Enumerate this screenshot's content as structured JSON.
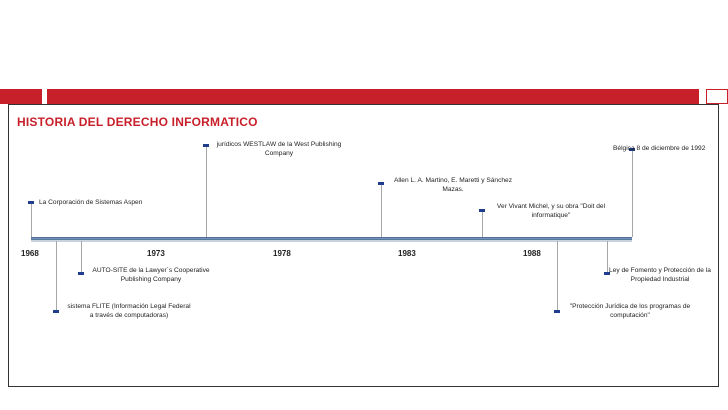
{
  "title": "HISTORIA DEL DERECHO INFORMATICO",
  "timeline": {
    "years": [
      "1968",
      "1973",
      "1978",
      "1983",
      "1988"
    ],
    "events": [
      {
        "id": "aspen",
        "lines": [
          "La Corporación de Sistemas Aspen",
          ""
        ]
      },
      {
        "id": "westlaw",
        "lines": [
          "jurídicos WESTLAW de la West Publishing",
          "Company"
        ]
      },
      {
        "id": "martino",
        "lines": [
          "Allen L. A. Martino, E. Maretti y Sánchez",
          "Mazas."
        ]
      },
      {
        "id": "vivant",
        "lines": [
          "Ver Vivant Michel, y su obra \"Doit del",
          "informatique\""
        ]
      },
      {
        "id": "belgica",
        "lines": [
          "Bélgica 8 de diciembre de 1992",
          ""
        ]
      },
      {
        "id": "autosite",
        "lines": [
          "AUTO-SITE de la Lawyer´s Cooperative",
          "Publishing Company"
        ]
      },
      {
        "id": "flite",
        "lines": [
          "sistema FLITE (Información Legal Federal",
          "a través de computadoras)"
        ]
      },
      {
        "id": "proteccion",
        "lines": [
          "\"Protección Jurídica de los programas de",
          "computación\""
        ]
      },
      {
        "id": "fomento",
        "lines": [
          "Ley de Fomento y Protección de la",
          "Propiedad Industrial"
        ]
      }
    ]
  }
}
